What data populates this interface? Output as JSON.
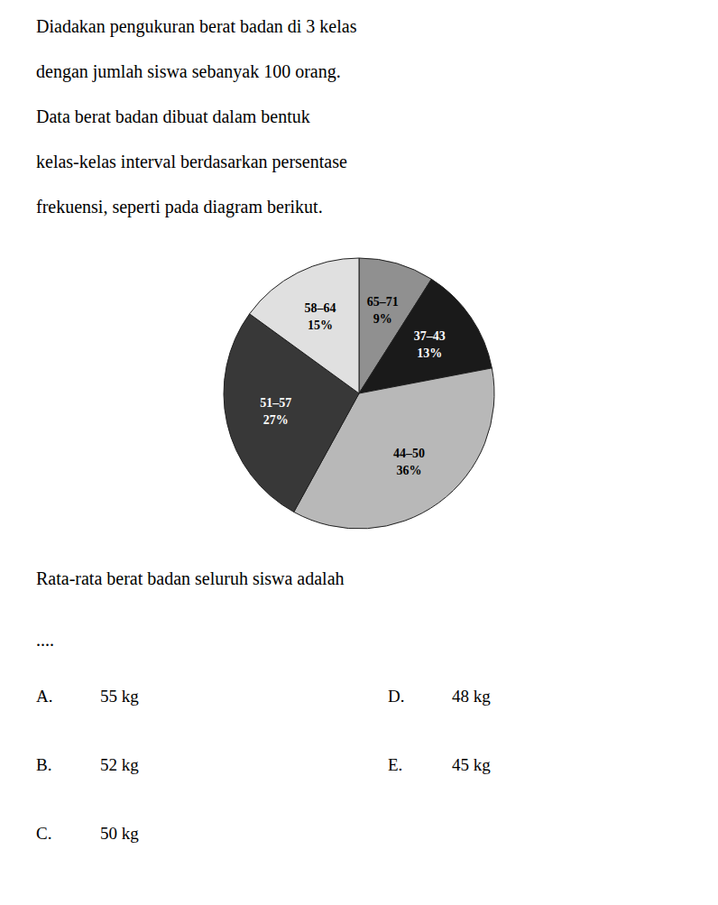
{
  "chart_data": {
    "type": "pie",
    "subtitle": [
      "Diadakan pengukuran berat badan di 3 kelas",
      "dengan jumlah siswa sebanyak 100 orang.",
      "Data berat badan dibuat dalam bentuk",
      "kelas-kelas interval berdasarkan persentase",
      "frekuensi, seperti pada diagram berikut."
    ],
    "categories": [
      "65–71",
      "37–43",
      "44–50",
      "51–57",
      "58–64"
    ],
    "values": [
      9,
      13,
      36,
      27,
      15
    ],
    "value_labels": [
      "9%",
      "13%",
      "36%",
      "27%",
      "15%"
    ],
    "colors": [
      "#909090",
      "#1a1a1a",
      "#b8b8b8",
      "#383838",
      "#e0e0e0"
    ],
    "data_labels": true,
    "annotations": [
      "Rata-rata berat badan seluruh siswa adalah",
      "....",
      "A.",
      "55 kg",
      "B.",
      "52 kg",
      "C.",
      "50 kg",
      "D.",
      "48 kg",
      "E.",
      "45 kg"
    ]
  }
}
